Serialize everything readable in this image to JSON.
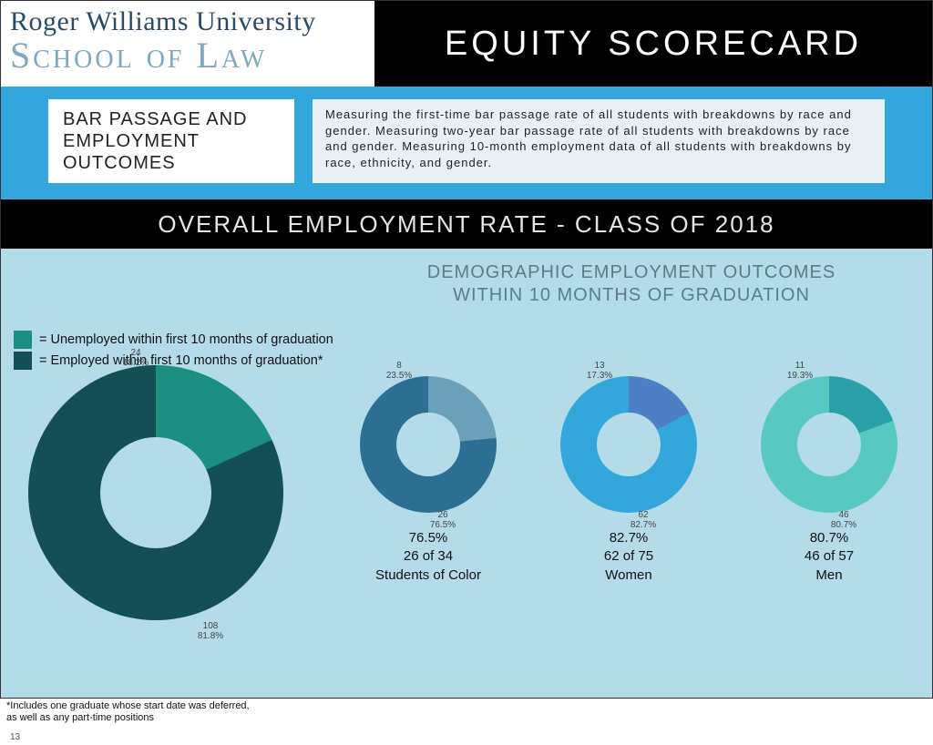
{
  "header": {
    "logo_line1": "Roger Williams University",
    "logo_line2": "School of Law",
    "title": "EQUITY SCORECARD"
  },
  "bluebar": {
    "left": "BAR PASSAGE AND EMPLOYMENT OUTCOMES",
    "right": "Measuring the first-time bar passage rate of all students with breakdowns by race and gender. Measuring two-year bar passage rate of all students with breakdowns by race and gender. Measuring 10-month employment data of all students with breakdowns by race, ethnicity, and gender."
  },
  "section_title": "OVERALL EMPLOYMENT RATE - CLASS OF 2018",
  "subhead_line1": "DEMOGRAPHIC EMPLOYMENT OUTCOMES",
  "subhead_line2": "WITHIN 10 MONTHS OF GRADUATION",
  "legend": {
    "unemployed": "= Unemployed within first 10 months of graduation",
    "employed": "= Employed within first 10 months of graduation*",
    "color_unemployed": "#1a8f82",
    "color_employed": "#134f54"
  },
  "overall_donut": {
    "type": "donut",
    "employed_count": 108,
    "employed_pct": 81.8,
    "unemployed_count": 24,
    "unemployed_pct": 18.2,
    "color_employed": "#134f54",
    "color_unemployed": "#1a8f82",
    "hole_color": "#b4dbe8",
    "label_top": "24\n18.2%",
    "label_bottom": "108\n81.8%"
  },
  "small_charts": [
    {
      "name": "Students of Color",
      "pct": 76.5,
      "of_text": "26 of 34",
      "pct_text": "76.5%",
      "color_main": "#2d6f93",
      "color_off": "#6aa0b8",
      "ann_top": "8\n23.5%",
      "ann_bot": "26\n76.5%"
    },
    {
      "name": "Women",
      "pct": 82.7,
      "of_text": "62 of 75",
      "pct_text": "82.7%",
      "color_main": "#33a6db",
      "color_off": "#4e7fc4",
      "ann_top": "13\n17.3%",
      "ann_bot": "62\n82.7%"
    },
    {
      "name": "Men",
      "pct": 80.7,
      "of_text": "46 of 57",
      "pct_text": "80.7%",
      "color_main": "#58c9c0",
      "color_off": "#2aa1a9",
      "ann_top": "11\n19.3%",
      "ann_bot": "46\n80.7%"
    }
  ],
  "footnote": "*Includes one graduate whose start date was deferred, as well as any part-time positions",
  "page_number": "13",
  "style": {
    "page_bg": "#b4dbe8",
    "black": "#000000",
    "bluebar_bg": "#33a6db",
    "bluebar_right_bg": "#e8f0f5",
    "subhead_color": "#5f7b84",
    "title_fontsize": 38,
    "section_fontsize": 26
  }
}
